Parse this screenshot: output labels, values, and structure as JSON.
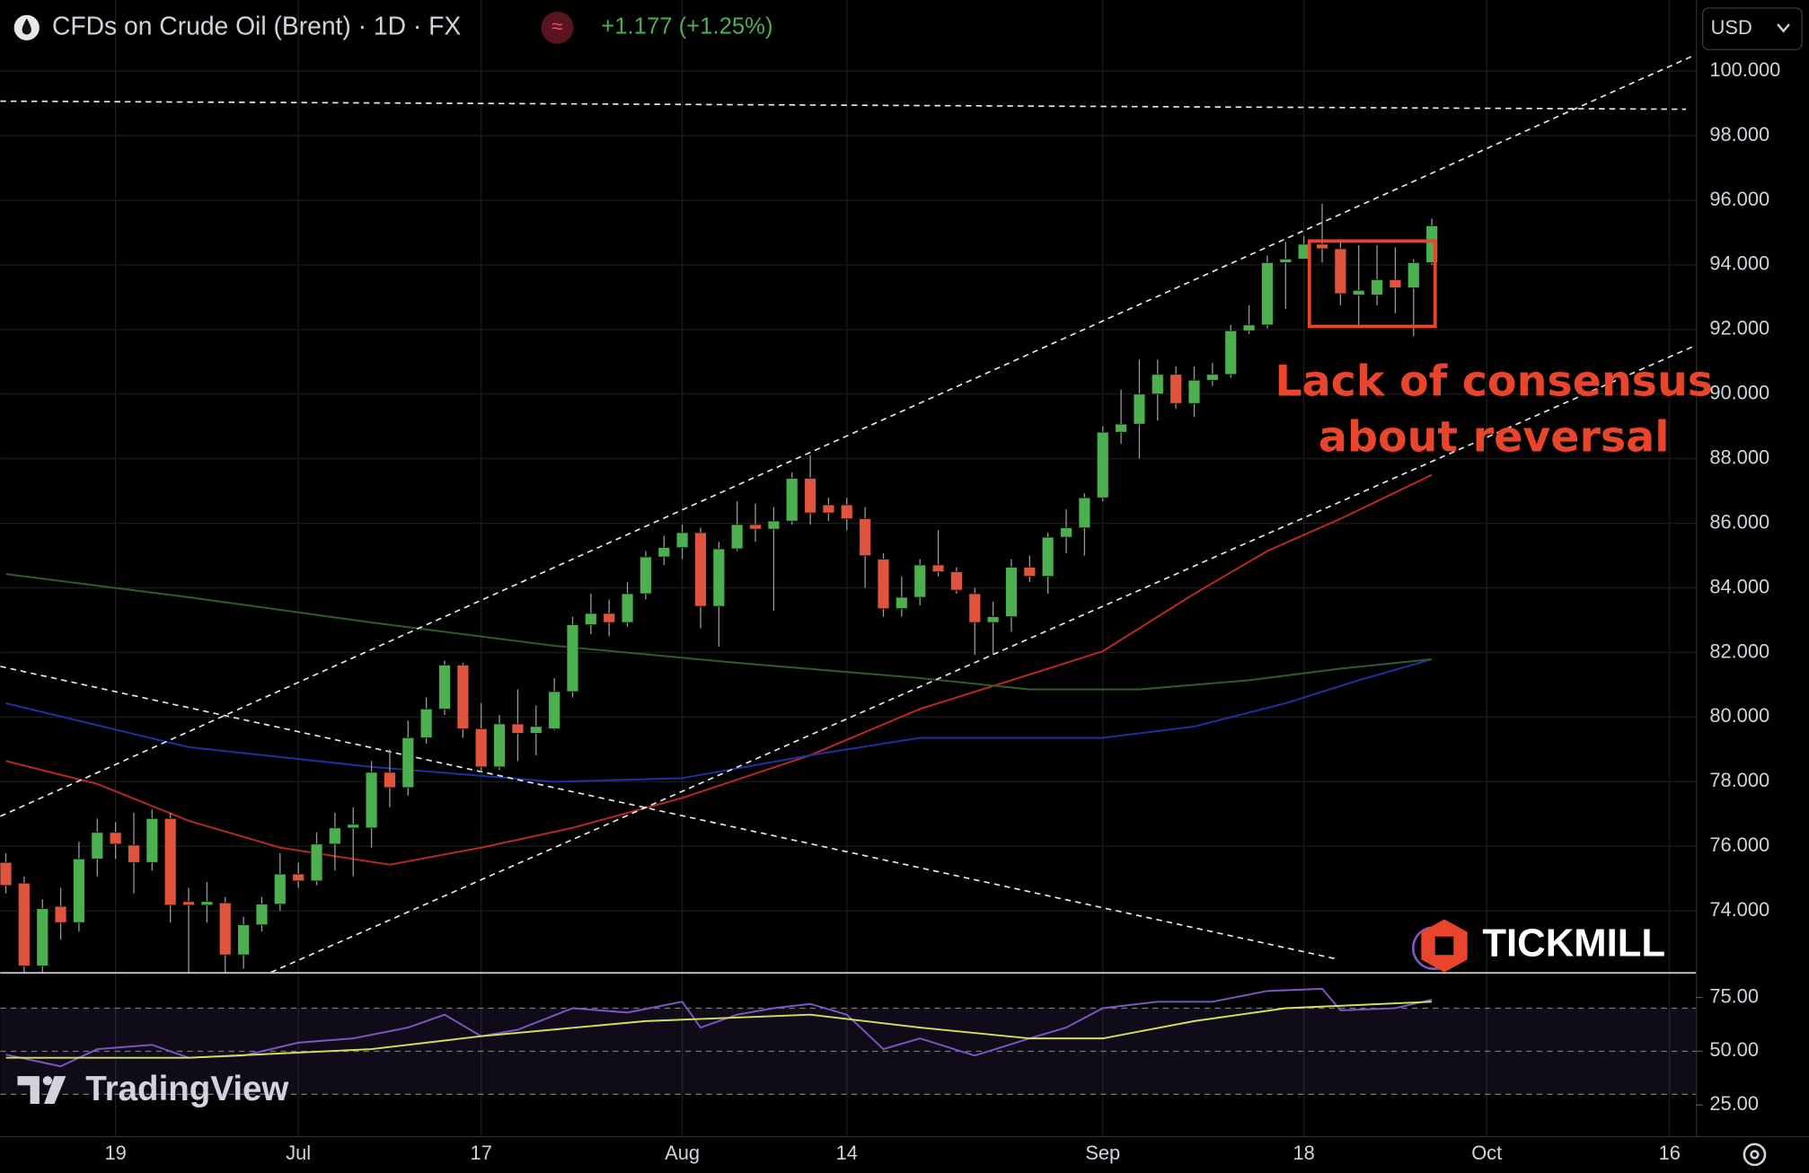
{
  "header": {
    "title": "CFDs on Crude Oil (Brent) · 1D · FX",
    "change": "+1.177 (+1.25%)",
    "currency": "USD"
  },
  "logos": {
    "broker": "TICKMILL",
    "platform": "TradingView"
  },
  "chart_data": {
    "type": "candlestick",
    "up_color": "#4caf50",
    "down_color": "#e0533d",
    "categories": [
      null,
      null,
      null,
      null,
      null,
      null,
      "19",
      null,
      null,
      null,
      null,
      null,
      null,
      null,
      null,
      null,
      "Jul",
      null,
      null,
      null,
      null,
      null,
      null,
      null,
      null,
      null,
      "17",
      null,
      null,
      null,
      null,
      null,
      null,
      null,
      null,
      null,
      null,
      "Aug",
      null,
      null,
      null,
      null,
      null,
      null,
      null,
      null,
      "14",
      null,
      null,
      null,
      null,
      null,
      null,
      null,
      null,
      null,
      null,
      null,
      null,
      null,
      "Sep",
      null,
      null,
      null,
      null,
      null,
      null,
      null,
      null,
      null,
      null,
      "18",
      null,
      null,
      null,
      null,
      null,
      null,
      null,
      null,
      null,
      "Oct",
      null,
      null,
      null,
      null,
      null,
      null,
      null,
      null,
      null,
      "16"
    ],
    "open": [
      75.5,
      74.86,
      72.3,
      74.14,
      73.64,
      75.61,
      76.43,
      76.04,
      75.5,
      76.86,
      74.29,
      74.18,
      74.25,
      72.64,
      73.57,
      74.21,
      75.14,
      74.93,
      76.07,
      76.57,
      76.57,
      78.29,
      77.82,
      79.36,
      80.25,
      81.61,
      79.64,
      78.46,
      79.79,
      79.5,
      79.64,
      80.79,
      82.86,
      83.21,
      82.93,
      83.82,
      84.96,
      85.25,
      85.71,
      83.43,
      85.21,
      85.96,
      85.82,
      86.07,
      87.39,
      86.57,
      86.57,
      86.14,
      84.89,
      83.36,
      83.71,
      84.71,
      84.5,
      83.82,
      82.93,
      83.11,
      84.64,
      84.36,
      85.57,
      85.86,
      86.79,
      88.82,
      89.07,
      90.0,
      90.61,
      89.71,
      90.43,
      90.61,
      91.96,
      92.14,
      94.07,
      94.18,
      94.64,
      94.5,
      93.07,
      93.07,
      93.54,
      93.29,
      94.07,
      null,
      null,
      null,
      null,
      null,
      null,
      null,
      null,
      null,
      null,
      null,
      null,
      null
    ],
    "high": [
      75.79,
      75.07,
      74.36,
      74.71,
      76.14,
      76.86,
      76.75,
      77.04,
      77.14,
      77.04,
      74.71,
      74.89,
      74.43,
      73.82,
      74.43,
      75.79,
      75.5,
      76.43,
      77.04,
      77.21,
      78.64,
      79.0,
      79.89,
      80.61,
      81.75,
      81.68,
      80.43,
      80.07,
      80.86,
      80.36,
      81.21,
      83.11,
      83.82,
      83.64,
      84.18,
      85.14,
      85.61,
      85.96,
      85.86,
      85.43,
      86.68,
      86.61,
      86.5,
      87.57,
      88.11,
      86.79,
      86.79,
      86.5,
      85.07,
      84.36,
      84.89,
      85.79,
      84.64,
      84.0,
      83.57,
      84.89,
      85.0,
      85.71,
      86.43,
      86.93,
      89.0,
      90.14,
      91.07,
      91.07,
      90.86,
      90.86,
      90.96,
      92.14,
      92.75,
      94.29,
      94.71,
      94.89,
      95.89,
      94.71,
      94.61,
      94.61,
      94.54,
      94.18,
      95.43,
      null,
      null,
      null,
      null,
      null,
      null,
      null,
      null,
      null,
      null,
      null,
      null,
      null
    ],
    "low": [
      74.54,
      72.1,
      72.1,
      73.11,
      73.36,
      75.07,
      75.61,
      74.54,
      75.25,
      73.64,
      72.1,
      73.64,
      72.1,
      72.21,
      73.36,
      74.0,
      74.71,
      74.79,
      75.25,
      75.07,
      75.96,
      77.21,
      77.57,
      79.18,
      80.07,
      79.36,
      78.29,
      78.36,
      78.64,
      78.82,
      79.6,
      80.61,
      82.57,
      82.5,
      82.8,
      83.64,
      84.71,
      84.89,
      82.75,
      82.18,
      85.14,
      85.43,
      83.29,
      85.96,
      85.96,
      86.07,
      85.79,
      84.0,
      83.11,
      83.11,
      83.46,
      84.36,
      83.82,
      81.93,
      81.93,
      82.64,
      84.18,
      83.82,
      85.07,
      85.0,
      86.68,
      88.46,
      88.0,
      89.18,
      89.54,
      89.29,
      90.25,
      90.5,
      91.86,
      92.04,
      92.64,
      94.18,
      94.07,
      92.75,
      92.14,
      92.75,
      92.5,
      91.79,
      94.0,
      null,
      null,
      null,
      null,
      null,
      null,
      null,
      null,
      null,
      null,
      null,
      null,
      null
    ],
    "close": [
      74.79,
      72.3,
      74.07,
      73.64,
      75.61,
      76.43,
      76.07,
      75.5,
      76.86,
      74.18,
      74.18,
      74.29,
      72.64,
      73.57,
      74.21,
      75.14,
      74.93,
      76.07,
      76.57,
      76.68,
      78.29,
      77.82,
      79.36,
      80.25,
      81.61,
      79.64,
      78.46,
      79.79,
      79.5,
      79.71,
      80.79,
      82.86,
      83.21,
      82.93,
      83.82,
      84.96,
      85.25,
      85.71,
      83.43,
      85.21,
      85.96,
      85.82,
      86.07,
      87.39,
      86.32,
      86.32,
      86.14,
      85.0,
      83.36,
      83.71,
      84.71,
      84.5,
      83.93,
      82.93,
      83.11,
      84.64,
      84.36,
      85.57,
      85.86,
      86.79,
      88.82,
      89.07,
      90.0,
      90.61,
      89.71,
      90.43,
      90.61,
      91.96,
      92.14,
      94.07,
      94.18,
      94.64,
      94.5,
      93.11,
      93.21,
      93.54,
      93.29,
      94.07,
      95.21,
      null,
      null,
      null,
      null,
      null,
      null,
      null,
      null,
      null,
      null,
      null,
      null,
      null
    ],
    "ylim": [
      72.1,
      102.2
    ],
    "yticks": [
      {
        "value": 74,
        "label": "74.000"
      },
      {
        "value": 76,
        "label": "76.000"
      },
      {
        "value": 78,
        "label": "78.000"
      },
      {
        "value": 80,
        "label": "80.000"
      },
      {
        "value": 82,
        "label": "82.000"
      },
      {
        "value": 84,
        "label": "84.000"
      },
      {
        "value": 86,
        "label": "86.000"
      },
      {
        "value": 88,
        "label": "88.000"
      },
      {
        "value": 90,
        "label": "90.000"
      },
      {
        "value": 92,
        "label": "92.000"
      },
      {
        "value": 94,
        "label": "94.000"
      },
      {
        "value": 96,
        "label": "96.000"
      },
      {
        "value": 98,
        "label": "98.000"
      },
      {
        "value": 100,
        "label": "100.000"
      }
    ],
    "grid": true,
    "overlays": [
      {
        "color": "#b22a22",
        "x": [
          0,
          5,
          10,
          15,
          21,
          26,
          31,
          37,
          44,
          50,
          56,
          60,
          65,
          69,
          73,
          78
        ],
        "values": [
          78.64,
          77.93,
          76.79,
          75.96,
          75.43,
          75.96,
          76.57,
          77.5,
          78.82,
          80.25,
          81.32,
          82.04,
          83.82,
          85.14,
          86.14,
          87.5
        ]
      },
      {
        "color": "#1f2f9e",
        "x": [
          0,
          10,
          20,
          30,
          37,
          44,
          50,
          60,
          65,
          70,
          74,
          78
        ],
        "values": [
          80.43,
          79.07,
          78.46,
          78.0,
          78.11,
          78.82,
          79.36,
          79.36,
          79.71,
          80.43,
          81.14,
          81.79
        ]
      },
      {
        "color": "#2f5a2a",
        "x": [
          0,
          10,
          20,
          30,
          40,
          50,
          56,
          62,
          68,
          73,
          78
        ],
        "values": [
          84.43,
          83.71,
          82.93,
          82.21,
          81.68,
          81.21,
          80.86,
          80.86,
          81.14,
          81.5,
          81.79
        ]
      }
    ],
    "trendlines": [
      {
        "x": [
          -0.3,
          92.4
        ],
        "values": [
          76.93,
          100.5
        ]
      },
      {
        "x": [
          14.5,
          92.4
        ],
        "values": [
          72.1,
          91.5
        ]
      },
      {
        "x": [
          -0.3,
          91.9
        ],
        "values": [
          99.07,
          98.82
        ]
      },
      {
        "x": [
          -0.3,
          72.9
        ],
        "values": [
          81.57,
          72.5
        ]
      }
    ],
    "annotation": {
      "lines": [
        "Lack of consensus",
        "about reversal"
      ],
      "color": "#e8452c"
    },
    "rsi": {
      "type": "line",
      "ylim": [
        10.6,
        85.6
      ],
      "yticks": [
        {
          "value": 25,
          "label": "25.00"
        },
        {
          "value": 50,
          "label": "50.00"
        },
        {
          "value": 75,
          "label": "75.00"
        }
      ],
      "bands": [
        70,
        50,
        30
      ],
      "series": [
        {
          "color": "#7e57c2",
          "x": [
            0,
            3,
            5,
            8,
            10,
            13,
            16,
            19,
            22,
            24,
            26,
            28,
            31,
            34,
            37,
            38,
            40,
            42,
            44,
            46,
            48,
            50,
            53,
            56,
            58,
            60,
            63,
            66,
            69,
            72,
            73,
            76,
            78
          ],
          "values": [
            48.4,
            43,
            51,
            53,
            47,
            48,
            54,
            56,
            61,
            67,
            57,
            60,
            70,
            68,
            73,
            61,
            67,
            70,
            72,
            67,
            51,
            56,
            48,
            56,
            61,
            70,
            73,
            73,
            78,
            79,
            69,
            70,
            74
          ]
        },
        {
          "color": "#d4e157",
          "x": [
            0,
            10,
            20,
            26,
            35,
            44,
            50,
            56,
            60,
            65,
            70,
            78
          ],
          "values": [
            47,
            47,
            51,
            57,
            64,
            67,
            61,
            56,
            56,
            64,
            70,
            73
          ]
        }
      ]
    }
  }
}
